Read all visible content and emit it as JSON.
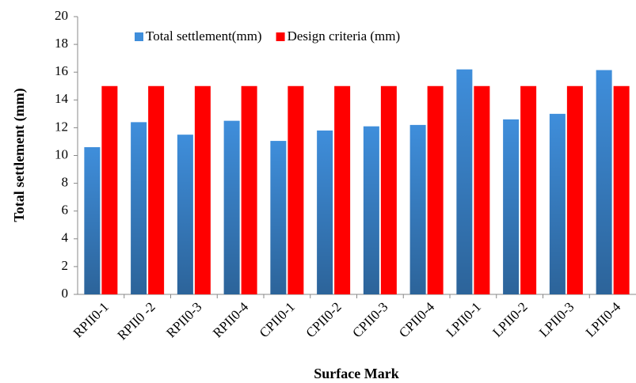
{
  "chart_data": {
    "type": "bar",
    "x_label": "Surface Mark",
    "y_label": "Total settlement (mm)",
    "categories": [
      "RPII0-1",
      "RPII0 -2",
      "RPII0-3",
      "RPII0-4",
      "CPII0-1",
      "CPII0-2",
      "CPII0-3",
      "CPII0-4",
      "LPII0-1",
      "LPII0-2",
      "LPII0-3",
      "LPII0-4"
    ],
    "series": [
      {
        "name": "Total settlement(mm)",
        "color": "#3f8edb",
        "values": [
          10.6,
          12.4,
          11.5,
          12.5,
          11.05,
          11.8,
          12.1,
          12.2,
          16.2,
          12.6,
          13.0,
          16.15
        ]
      },
      {
        "name": "Design criteria (mm)",
        "color": "#ff0000",
        "values": [
          15,
          15,
          15,
          15,
          15,
          15,
          15,
          15,
          15,
          15,
          15,
          15
        ]
      }
    ],
    "ylim": [
      0,
      20
    ],
    "yticks": [
      0,
      2,
      4,
      6,
      8,
      10,
      12,
      14,
      16,
      18,
      20
    ],
    "grid": false,
    "legend": "top"
  }
}
